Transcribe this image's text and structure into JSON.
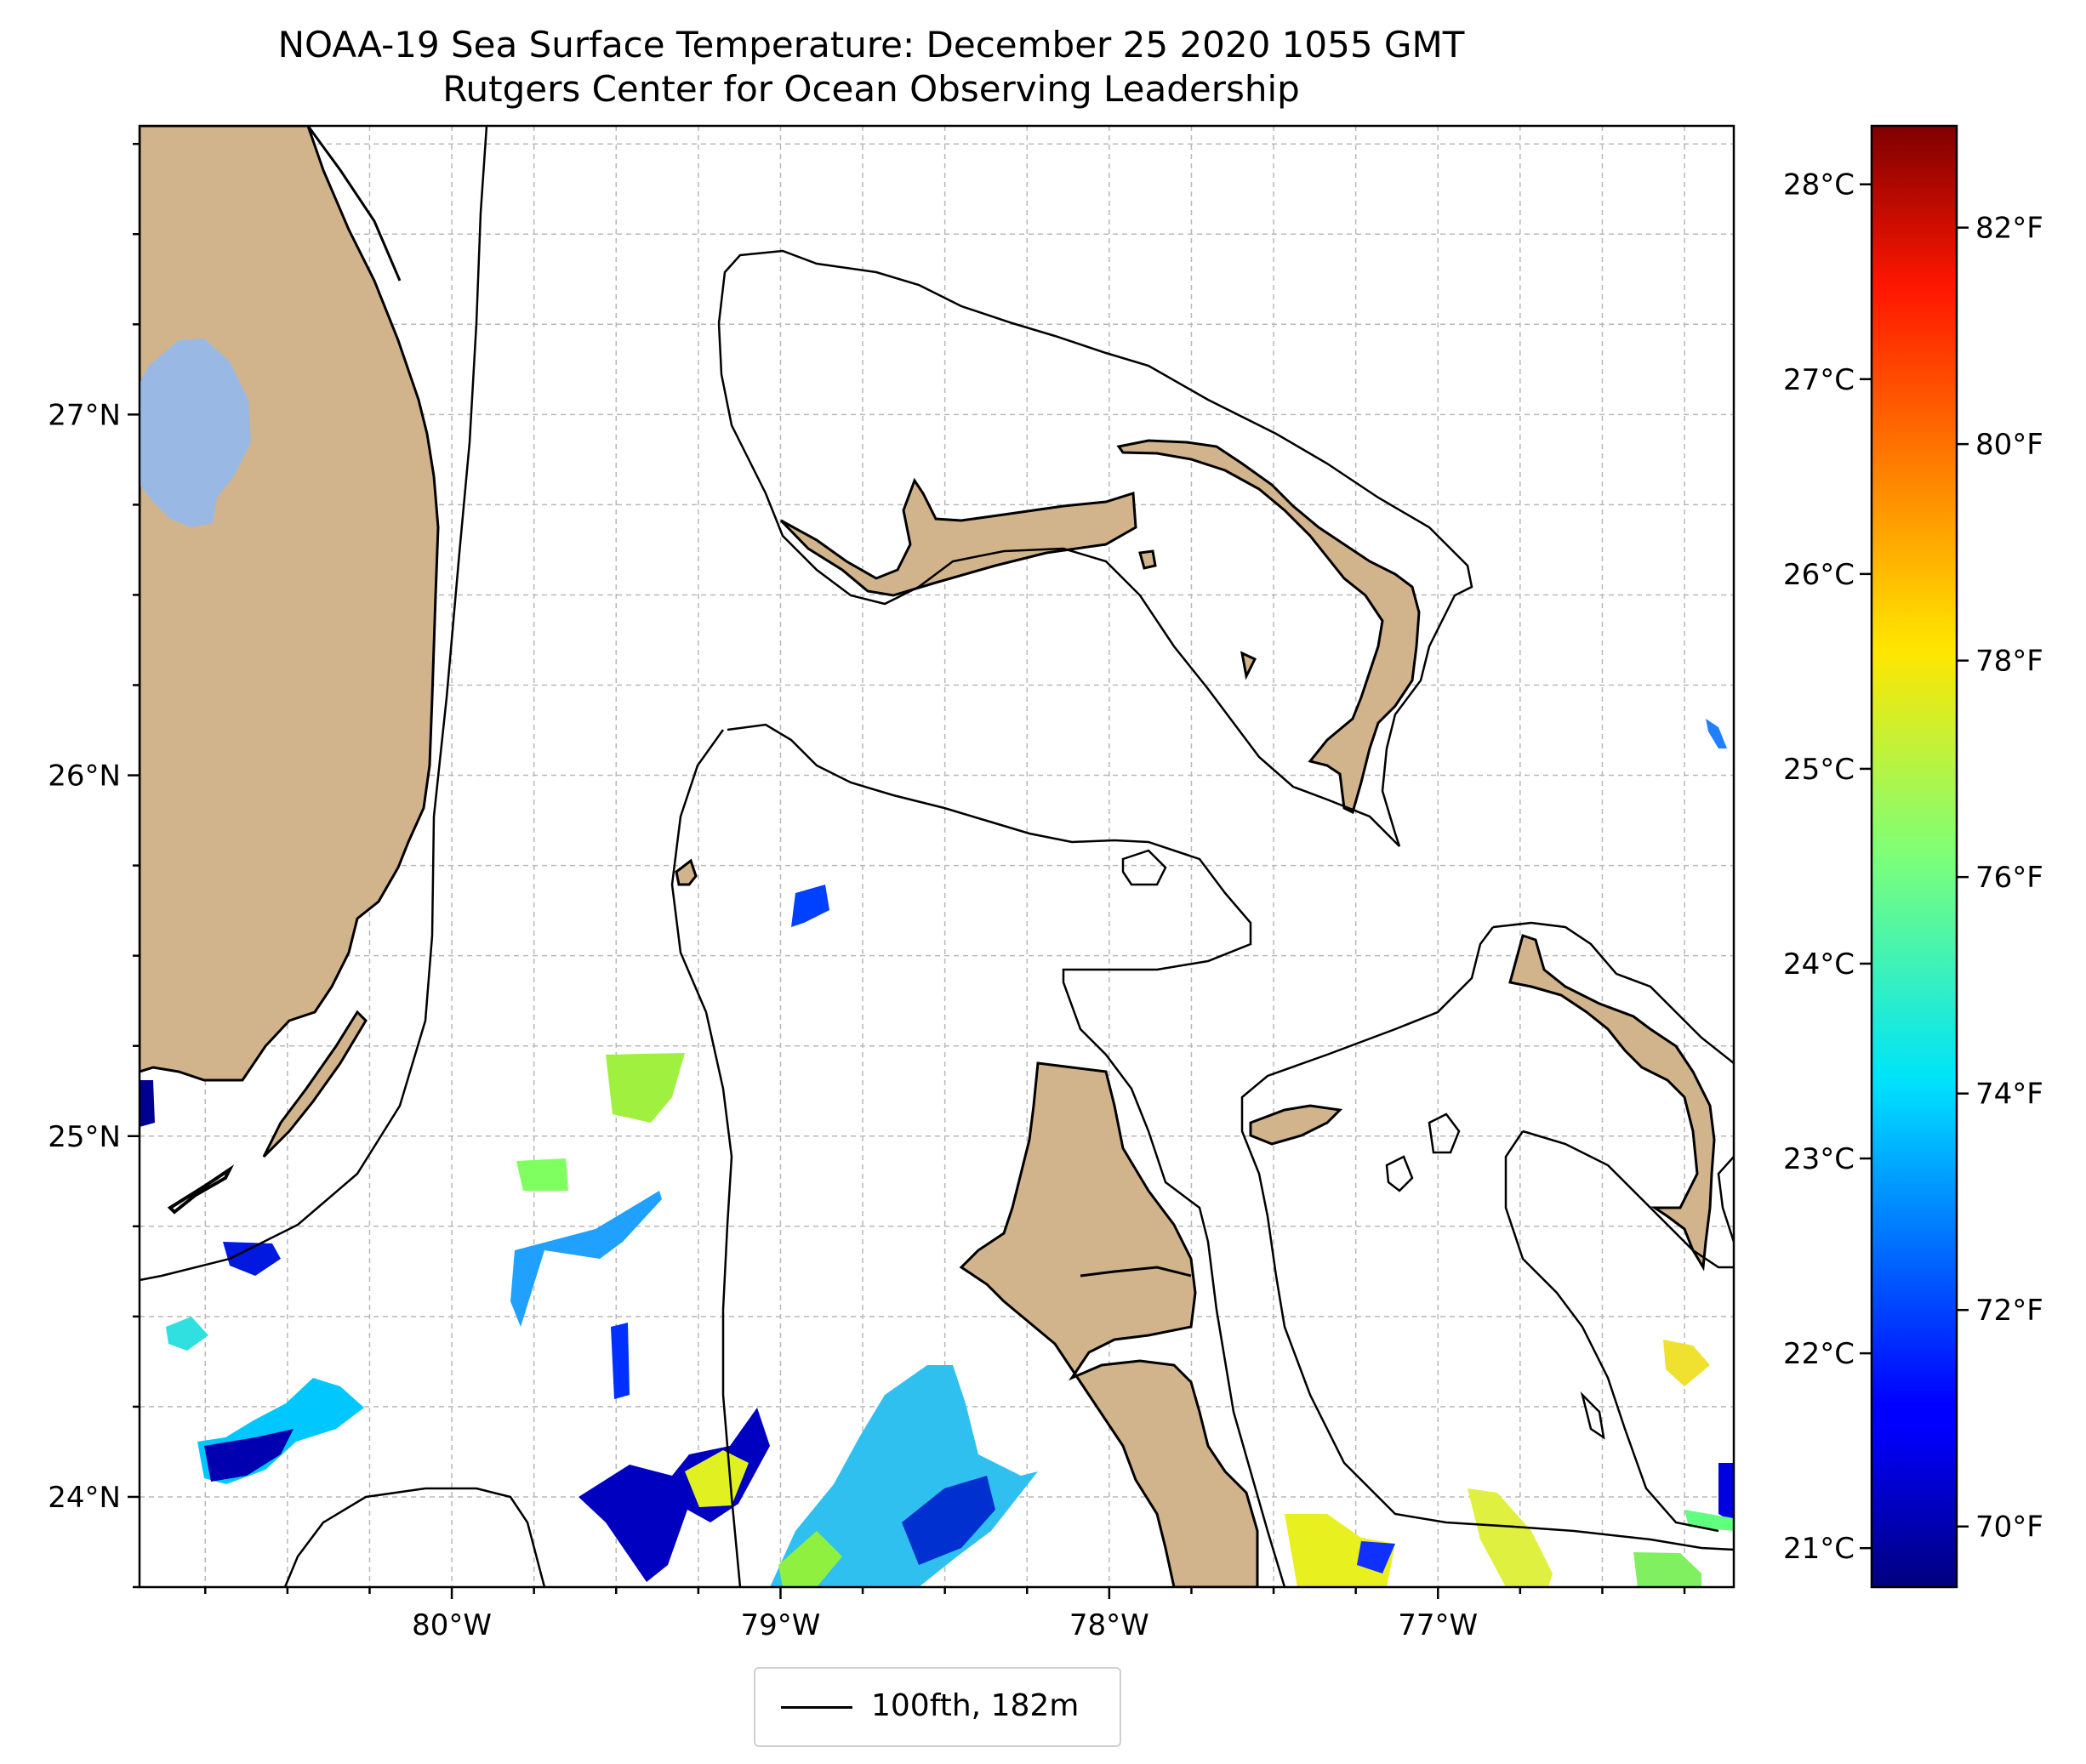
{
  "title": {
    "line1": "NOAA-19 Sea Surface Temperature: December 25 2020 1055 GMT",
    "line2": "Rutgers Center for Ocean Observing Leadership"
  },
  "axes": {
    "lon_labels": [
      "80°W",
      "79°W",
      "78°W",
      "77°W"
    ],
    "lat_labels": [
      "27°N",
      "26°N",
      "25°N",
      "24°N"
    ],
    "lon_range": [
      -80.95,
      -76.1
    ],
    "lat_range": [
      23.75,
      27.8
    ]
  },
  "colorbar": {
    "celsius_labels": [
      "28°C",
      "27°C",
      "26°C",
      "25°C",
      "24°C",
      "23°C",
      "22°C",
      "21°C"
    ],
    "fahrenheit_labels": [
      "82°F",
      "80°F",
      "78°F",
      "76°F",
      "74°F",
      "72°F",
      "70°F"
    ],
    "colormap": "jet",
    "range_c": [
      20.8,
      28.3
    ]
  },
  "legend": {
    "label": "100fth, 182m",
    "line_color": "#000000"
  },
  "colors": {
    "land": "#d2b48c",
    "lake": "#9ab8e4",
    "grid": "#b0b0b0"
  }
}
